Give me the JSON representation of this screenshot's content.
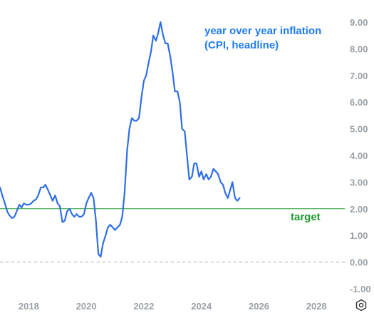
{
  "chart_data": {
    "type": "line",
    "title_lines": [
      "year over year inflation",
      "(CPI, headline)"
    ],
    "ylim": [
      -1.0,
      9.3
    ],
    "xlim": [
      2017.0,
      2030.0
    ],
    "y_ticks": [
      "9.00",
      "8.00",
      "7.00",
      "6.00",
      "5.00",
      "4.00",
      "3.00",
      "2.00",
      "1.00",
      "0.00",
      "-1.00"
    ],
    "y_tick_values": [
      9,
      8,
      7,
      6,
      5,
      4,
      3,
      2,
      1,
      0,
      -1
    ],
    "x_ticks": [
      "2018",
      "2020",
      "2022",
      "2024",
      "2026",
      "2028"
    ],
    "x_tick_values": [
      2018,
      2020,
      2022,
      2024,
      2026,
      2028
    ],
    "grid": "dashed zero line only",
    "target": {
      "label": "target",
      "value": 2.0,
      "color": "#1d9a2e"
    },
    "series": [
      {
        "color": "#2f6ee6",
        "x": [
          2017.0,
          2017.08,
          2017.17,
          2017.25,
          2017.33,
          2017.42,
          2017.5,
          2017.58,
          2017.67,
          2017.75,
          2017.83,
          2017.92,
          2018.0,
          2018.08,
          2018.17,
          2018.25,
          2018.33,
          2018.42,
          2018.5,
          2018.58,
          2018.67,
          2018.75,
          2018.83,
          2018.92,
          2019.0,
          2019.08,
          2019.17,
          2019.25,
          2019.33,
          2019.42,
          2019.5,
          2019.58,
          2019.67,
          2019.75,
          2019.83,
          2019.92,
          2020.0,
          2020.08,
          2020.17,
          2020.25,
          2020.33,
          2020.42,
          2020.5,
          2020.58,
          2020.67,
          2020.75,
          2020.83,
          2020.92,
          2021.0,
          2021.08,
          2021.17,
          2021.25,
          2021.33,
          2021.42,
          2021.5,
          2021.58,
          2021.67,
          2021.75,
          2021.83,
          2021.92,
          2022.0,
          2022.08,
          2022.17,
          2022.25,
          2022.33,
          2022.42,
          2022.5,
          2022.58,
          2022.67,
          2022.75,
          2022.83,
          2022.92,
          2023.0,
          2023.08,
          2023.17,
          2023.25,
          2023.33,
          2023.42,
          2023.5,
          2023.58,
          2023.67,
          2023.75,
          2023.83,
          2023.92,
          2024.0,
          2024.08,
          2024.17,
          2024.25,
          2024.33,
          2024.42,
          2024.5,
          2024.58,
          2024.67,
          2024.75,
          2024.83,
          2024.92,
          2025.0,
          2025.08,
          2025.17,
          2025.25,
          2025.33
        ],
        "values": [
          2.8,
          2.5,
          2.2,
          1.9,
          1.75,
          1.65,
          1.7,
          1.9,
          2.15,
          2.05,
          2.2,
          2.15,
          2.15,
          2.2,
          2.3,
          2.35,
          2.5,
          2.8,
          2.8,
          2.9,
          2.7,
          2.5,
          2.3,
          2.5,
          2.2,
          2.1,
          1.5,
          1.55,
          1.9,
          2.0,
          1.8,
          1.7,
          1.8,
          1.7,
          1.7,
          1.8,
          2.2,
          2.4,
          2.6,
          2.4,
          1.6,
          0.3,
          0.2,
          0.7,
          1.0,
          1.3,
          1.4,
          1.3,
          1.2,
          1.3,
          1.4,
          1.7,
          2.6,
          4.2,
          5.0,
          5.4,
          5.3,
          5.3,
          5.4,
          6.2,
          6.8,
          7.0,
          7.5,
          7.9,
          8.5,
          8.3,
          8.6,
          9.0,
          8.5,
          8.2,
          8.2,
          7.7,
          7.1,
          6.4,
          6.4,
          6.0,
          5.0,
          4.9,
          4.0,
          3.1,
          3.2,
          3.7,
          3.7,
          3.2,
          3.4,
          3.1,
          3.3,
          3.1,
          3.2,
          3.5,
          3.4,
          3.3,
          3.0,
          2.9,
          2.6,
          2.4,
          2.7,
          3.0,
          2.4,
          2.3,
          2.4
        ]
      }
    ]
  },
  "settings": {
    "icon": "settings-gear-icon"
  }
}
